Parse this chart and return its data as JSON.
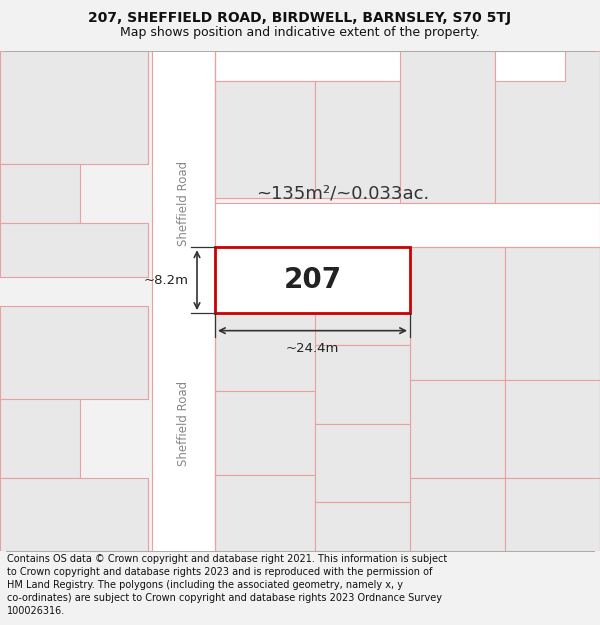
{
  "title_line1": "207, SHEFFIELD ROAD, BIRDWELL, BARNSLEY, S70 5TJ",
  "title_line2": "Map shows position and indicative extent of the property.",
  "footer_text": "Contains OS data © Crown copyright and database right 2021. This information is subject to Crown copyright and database rights 2023 and is reproduced with the permission of HM Land Registry. The polygons (including the associated geometry, namely x, y co-ordinates) are subject to Crown copyright and database rights 2023 Ordnance Survey 100026316.",
  "bg_color": "#f2f2f2",
  "map_bg_color": "#ebebeb",
  "plot_facecolor": "#ffffff",
  "road_color": "#ffffff",
  "boundary_color": "#e8a0a0",
  "highlight_color": "#cc0000",
  "building_fill": "#e8e8e8",
  "road_label": "Sheffield Road",
  "road_label2": "Sheffield Road",
  "plot_label": "207",
  "area_label": "~135m²/~0.033ac.",
  "dim_width": "~24.4m",
  "dim_height": "~8.2m",
  "title_fontsize": 10,
  "subtitle_fontsize": 9,
  "footer_fontsize": 7,
  "label_fontsize": 20,
  "area_fontsize": 13
}
